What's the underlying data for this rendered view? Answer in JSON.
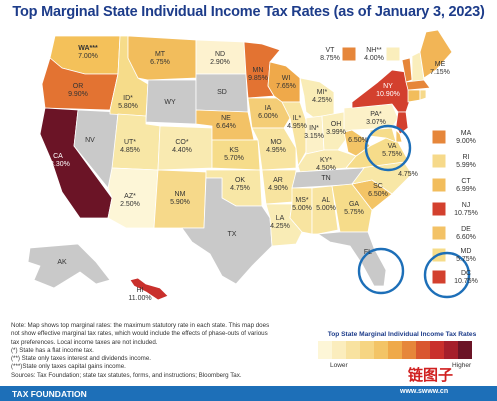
{
  "title": "Top Marginal State Individual Income Tax Rates (as of January 3, 2023)",
  "states": {
    "WA": {
      "abbr": "WA***",
      "rate": "7.00%",
      "color": "#f4c15a"
    },
    "OR": {
      "abbr": "OR",
      "rate": "9.90%",
      "color": "#e37332"
    },
    "CA": {
      "abbr": "CA",
      "rate": "13.30%",
      "color": "#6b1426"
    },
    "NV": {
      "abbr": "NV",
      "rate": "",
      "color": "#c9c9c9"
    },
    "ID": {
      "abbr": "ID*",
      "rate": "5.80%",
      "color": "#f6dc8a"
    },
    "MT": {
      "abbr": "MT",
      "rate": "6.75%",
      "color": "#f2bd5c"
    },
    "WY": {
      "abbr": "WY",
      "rate": "",
      "color": "#c9c9c9"
    },
    "UT": {
      "abbr": "UT*",
      "rate": "4.85%",
      "color": "#f8e7a6"
    },
    "AZ": {
      "abbr": "AZ*",
      "rate": "2.50%",
      "color": "#fdf6d7"
    },
    "CO": {
      "abbr": "CO*",
      "rate": "4.40%",
      "color": "#f9eab1"
    },
    "NM": {
      "abbr": "NM",
      "rate": "5.90%",
      "color": "#f6d98a"
    },
    "ND": {
      "abbr": "ND",
      "rate": "2.90%",
      "color": "#fdf2cf"
    },
    "SD": {
      "abbr": "SD",
      "rate": "",
      "color": "#c9c9c9"
    },
    "NE": {
      "abbr": "NE",
      "rate": "6.64%",
      "color": "#f3c266"
    },
    "KS": {
      "abbr": "KS",
      "rate": "5.70%",
      "color": "#f6dc8a"
    },
    "OK": {
      "abbr": "OK",
      "rate": "4.75%",
      "color": "#f8e7a6"
    },
    "TX": {
      "abbr": "TX",
      "rate": "",
      "color": "#c9c9c9"
    },
    "MN": {
      "abbr": "MN",
      "rate": "9.85%",
      "color": "#e37332"
    },
    "IA": {
      "abbr": "IA",
      "rate": "6.00%",
      "color": "#f4cd76"
    },
    "MO": {
      "abbr": "MO",
      "rate": "4.95%",
      "color": "#f8e4a0"
    },
    "AR": {
      "abbr": "AR",
      "rate": "4.90%",
      "color": "#f8e4a0"
    },
    "LA": {
      "abbr": "LA",
      "rate": "4.25%",
      "color": "#f9ecb6"
    },
    "WI": {
      "abbr": "WI",
      "rate": "7.65%",
      "color": "#efa94a"
    },
    "IL": {
      "abbr": "IL*",
      "rate": "4.95%",
      "color": "#f8e4a0"
    },
    "MI": {
      "abbr": "MI*",
      "rate": "4.25%",
      "color": "#f9ecb6"
    },
    "IN": {
      "abbr": "IN*",
      "rate": "3.15%",
      "color": "#fcf1c8"
    },
    "OH": {
      "abbr": "OH",
      "rate": "3.99%",
      "color": "#faeebc"
    },
    "KY": {
      "abbr": "KY*",
      "rate": "4.50%",
      "color": "#f9eab1"
    },
    "TN": {
      "abbr": "TN",
      "rate": "",
      "color": "#c9c9c9"
    },
    "MS": {
      "abbr": "MS*",
      "rate": "5.00%",
      "color": "#f8e4a0"
    },
    "AL": {
      "abbr": "AL",
      "rate": "5.00%",
      "color": "#f8e4a0"
    },
    "GA": {
      "abbr": "GA",
      "rate": "5.75%",
      "color": "#f6dc8a"
    },
    "FL": {
      "abbr": "FL",
      "rate": "",
      "color": "#c9c9c9"
    },
    "SC": {
      "abbr": "SC",
      "rate": "6.50%",
      "color": "#f3c466"
    },
    "NC": {
      "abbr": "NC*",
      "rate": "4.75%",
      "color": "#f8e7a6"
    },
    "VA": {
      "abbr": "VA",
      "rate": "5.75%",
      "color": "#f6dc8a"
    },
    "WV": {
      "abbr": "WV",
      "rate": "6.50%",
      "color": "#f3c466"
    },
    "PA": {
      "abbr": "PA*",
      "rate": "3.07%",
      "color": "#fcf1c8"
    },
    "NY": {
      "abbr": "NY",
      "rate": "10.90%",
      "color": "#d3402e"
    },
    "VT": {
      "abbr": "VT",
      "rate": "8.75%",
      "color": "#e6863a"
    },
    "NH": {
      "abbr": "NH**",
      "rate": "4.00%",
      "color": "#faeebc"
    },
    "ME": {
      "abbr": "ME",
      "rate": "7.15%",
      "color": "#f2b556"
    },
    "AK": {
      "abbr": "AK",
      "rate": "",
      "color": "#c9c9c9"
    },
    "HI": {
      "abbr": "HI",
      "rate": "11.00%",
      "color": "#c9302c"
    },
    "MA": {
      "abbr": "MA",
      "rate": "9.00%",
      "color": "#e6863a"
    },
    "RI": {
      "abbr": "RI",
      "rate": "5.99%",
      "color": "#f6d98a"
    },
    "CT": {
      "abbr": "CT",
      "rate": "6.99%",
      "color": "#f2bd5c"
    },
    "NJ": {
      "abbr": "NJ",
      "rate": "10.75%",
      "color": "#d3402e"
    },
    "DE": {
      "abbr": "DE",
      "rate": "6.60%",
      "color": "#f3c266"
    },
    "MD": {
      "abbr": "MD",
      "rate": "5.75%",
      "color": "#f6dc8a"
    },
    "DC": {
      "abbr": "DC",
      "rate": "10.75%",
      "color": "#d3402e"
    }
  },
  "notes": [
    "Note: Map shows top marginal rates: the maximum statutory rate in each state. This map does",
    "not show effective marginal tax rates, which would include the effects of phase-outs of various",
    "tax preferences. Local income taxes are not included.",
    "(*) State has a flat income tax.",
    "(**) State only taxes interest and dividends income.",
    "(***)State only taxes capital gains income.",
    "Sources: Tax Foundation; state tax statutes, forms, and instructions; Bloomberg Tax."
  ],
  "legend": {
    "title": "Top State Marginal Individual Income Tax Rates",
    "lower": "Lower",
    "higher": "Higher",
    "colors": [
      "#fdf6d7",
      "#fbedbd",
      "#f8e2a0",
      "#f6d583",
      "#f3c466",
      "#efa94a",
      "#e6863a",
      "#d9572f",
      "#c9302c",
      "#a51f2b",
      "#6b1426"
    ]
  },
  "footer": {
    "source": "TAX FOUNDATION"
  },
  "watermark": {
    "text": "链图子",
    "url": "www.swww.cn"
  },
  "highlight_color": "#1d6fb8"
}
